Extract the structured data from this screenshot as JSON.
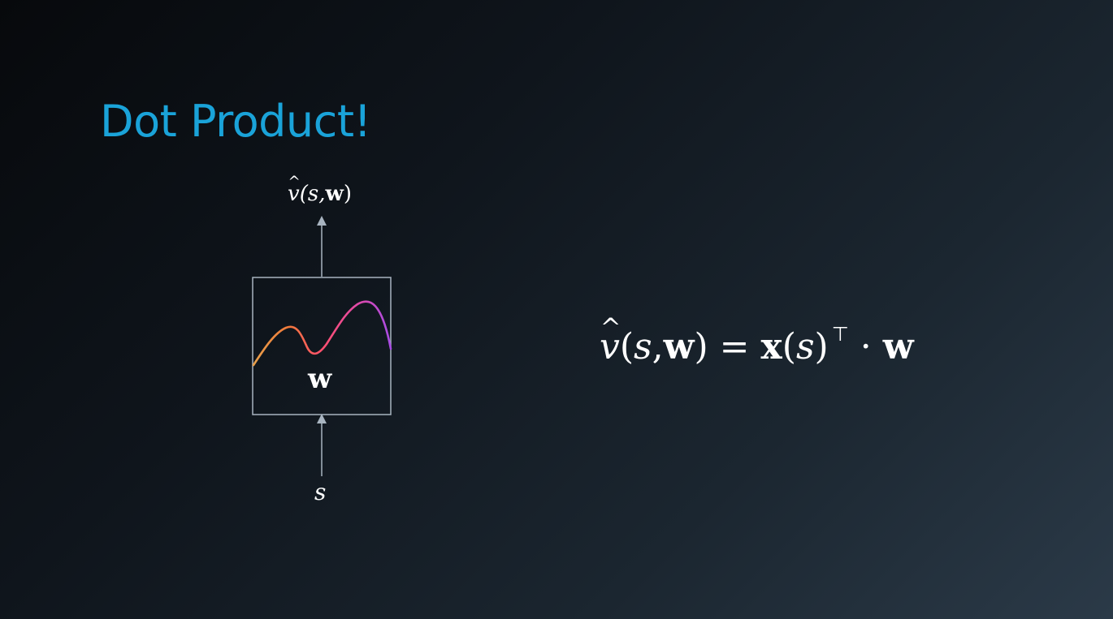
{
  "slide": {
    "title": "Dot Product!"
  },
  "diagram": {
    "output_label": {
      "v": "v",
      "rest": "(s,",
      "w": "w",
      "close": ")"
    },
    "input_label": "s",
    "weight_label": "w",
    "curve_colors": [
      "#f08a3a",
      "#ff4f7a",
      "#b14be0"
    ],
    "stroke_color": "#a8b4c0"
  },
  "equation": {
    "v": "v",
    "open": "(",
    "s": "s",
    "comma": ",",
    "w1": "w",
    "close": ")",
    "equals": " = ",
    "x": "x",
    "open2": "(",
    "s2": "s",
    "close2": ")",
    "transpose": "⊤",
    "dot": " · ",
    "w2": "w"
  }
}
